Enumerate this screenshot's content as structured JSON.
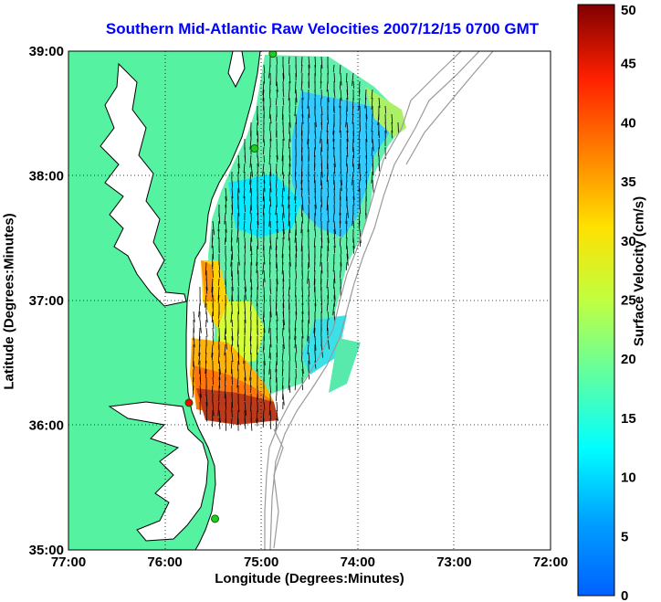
{
  "title": "Southern Mid-Atlantic Raw Velocities 2007/12/15 0700 GMT",
  "xlabel": "Longitude (Degrees:Minutes)",
  "ylabel": "Latitude (Degrees:Minutes)",
  "colorbar": {
    "label": "Surface Velocity (cm/s)",
    "ticks": [
      "0",
      "5",
      "10",
      "15",
      "20",
      "25",
      "30",
      "35",
      "40",
      "45",
      "50"
    ],
    "min": 0,
    "max": 50
  },
  "axes": {
    "x_ticks": [
      "77:00",
      "76:00",
      "75:00",
      "74:00",
      "73:00",
      "72:00"
    ],
    "y_ticks": [
      "39:00",
      "38:00",
      "37:00",
      "36:00",
      "35:00"
    ],
    "lon_range": [
      -77,
      -72
    ],
    "lat_range": [
      35,
      39
    ],
    "grid": true
  },
  "colors": {
    "land": "#55f2a2",
    "title": "#0000ff",
    "station_green": "#22cc22",
    "station_red": "#ff0000"
  },
  "chart_data": {
    "type": "heatmap",
    "description_of_field": "surface current velocity vectors colored by speed",
    "stations": [
      {
        "lon": -74.88,
        "lat": 38.98,
        "color": "green"
      },
      {
        "lon": -75.07,
        "lat": 38.22,
        "color": "green"
      },
      {
        "lon": -75.75,
        "lat": 36.18,
        "color": "red"
      },
      {
        "lon": -75.48,
        "lat": 35.25,
        "color": "green"
      }
    ]
  }
}
